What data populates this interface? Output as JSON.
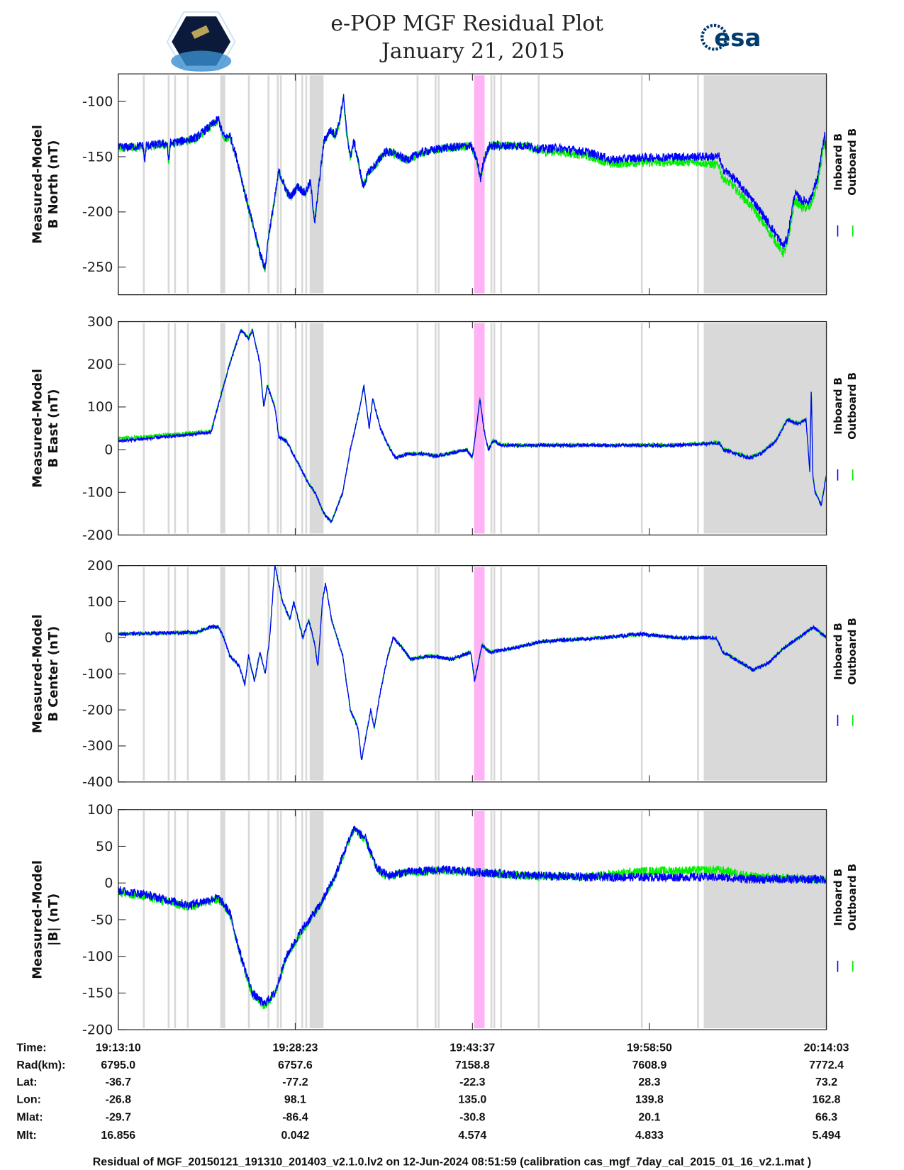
{
  "header": {
    "title_line1": "e-POP MGF Residual Plot",
    "title_line2": "January 21, 2015",
    "left_logo": "CASSIOPE",
    "right_logo": "esa"
  },
  "colors": {
    "inboard": "#0000ff",
    "outboard": "#00ee00",
    "shade": "#d9d9d9",
    "pink": "#ffb3f5"
  },
  "chart_data": [
    {
      "type": "line",
      "name": "B North",
      "ylabel": [
        "Measured-Model",
        "B North (nT)"
      ],
      "ylim": [
        -275,
        -75
      ],
      "yticks": [
        -100,
        -150,
        -200,
        -250
      ],
      "noise": 4,
      "legend": [
        "Inboard B",
        "Outboard B"
      ],
      "legend_placement": "right",
      "inboard": [
        [
          0,
          -142
        ],
        [
          128,
          -140
        ],
        [
          136,
          -155
        ],
        [
          144,
          -140
        ],
        [
          253,
          -138
        ],
        [
          260,
          -157
        ],
        [
          268,
          -138
        ],
        [
          400,
          -133
        ],
        [
          517,
          -116
        ],
        [
          540,
          -130
        ],
        [
          556,
          -133
        ],
        [
          575,
          -130
        ],
        [
          614,
          -153
        ],
        [
          653,
          -183
        ],
        [
          692,
          -210
        ],
        [
          731,
          -237
        ],
        [
          758,
          -251
        ],
        [
          773,
          -224
        ],
        [
          808,
          -187
        ],
        [
          828,
          -163
        ],
        [
          859,
          -177
        ],
        [
          886,
          -187
        ],
        [
          925,
          -177
        ],
        [
          964,
          -183
        ],
        [
          991,
          -173
        ],
        [
          1014,
          -210
        ],
        [
          1030,
          -183
        ],
        [
          1061,
          -136
        ],
        [
          1092,
          -126
        ],
        [
          1119,
          -130
        ],
        [
          1139,
          -120
        ],
        [
          1162,
          -96
        ],
        [
          1177,
          -126
        ],
        [
          1197,
          -150
        ],
        [
          1216,
          -136
        ],
        [
          1236,
          -153
        ],
        [
          1263,
          -177
        ],
        [
          1294,
          -163
        ],
        [
          1333,
          -156
        ],
        [
          1372,
          -146
        ],
        [
          1411,
          -146
        ],
        [
          1488,
          -153
        ],
        [
          1566,
          -146
        ],
        [
          1683,
          -142
        ],
        [
          1819,
          -140
        ],
        [
          1850,
          -153
        ],
        [
          1869,
          -170
        ],
        [
          1885,
          -153
        ],
        [
          1916,
          -140
        ],
        [
          1955,
          -140
        ],
        [
          2110,
          -140
        ],
        [
          2168,
          -143
        ],
        [
          2266,
          -142
        ],
        [
          2421,
          -146
        ],
        [
          2499,
          -150
        ],
        [
          2538,
          -153
        ],
        [
          2693,
          -151
        ],
        [
          2887,
          -150
        ],
        [
          3101,
          -150
        ],
        [
          3113,
          -160
        ],
        [
          3179,
          -170
        ],
        [
          3276,
          -190
        ],
        [
          3354,
          -210
        ],
        [
          3431,
          -231
        ],
        [
          3451,
          -224
        ],
        [
          3490,
          -183
        ],
        [
          3528,
          -190
        ],
        [
          3567,
          -190
        ],
        [
          3606,
          -170
        ],
        [
          3645,
          -130
        ],
        [
          3653,
          -150
        ]
      ],
      "outboard_offset": [
        [
          0,
          -1
        ],
        [
          2100,
          0
        ],
        [
          2200,
          -3
        ],
        [
          3000,
          -5
        ],
        [
          3100,
          -8
        ],
        [
          3653,
          -6
        ]
      ]
    },
    {
      "type": "line",
      "name": "B East",
      "ylabel": [
        "Measured-Model",
        "B East (nT)"
      ],
      "ylim": [
        -200,
        300
      ],
      "yticks": [
        300,
        200,
        100,
        0,
        -100,
        -200
      ],
      "noise": 4,
      "legend": [
        "Inboard B",
        "Outboard B"
      ],
      "legend_placement": "right",
      "inboard": [
        [
          0,
          20
        ],
        [
          200,
          28
        ],
        [
          478,
          40
        ],
        [
          544,
          150
        ],
        [
          575,
          200
        ],
        [
          633,
          280
        ],
        [
          672,
          260
        ],
        [
          692,
          280
        ],
        [
          731,
          200
        ],
        [
          750,
          100
        ],
        [
          769,
          150
        ],
        [
          808,
          100
        ],
        [
          828,
          30
        ],
        [
          867,
          20
        ],
        [
          925,
          -30
        ],
        [
          983,
          -80
        ],
        [
          1014,
          -100
        ],
        [
          1061,
          -150
        ],
        [
          1100,
          -170
        ],
        [
          1158,
          -100
        ],
        [
          1197,
          0
        ],
        [
          1247,
          100
        ],
        [
          1267,
          150
        ],
        [
          1294,
          50
        ],
        [
          1313,
          120
        ],
        [
          1352,
          50
        ],
        [
          1391,
          10
        ],
        [
          1430,
          -20
        ],
        [
          1488,
          -10
        ],
        [
          1566,
          -10
        ],
        [
          1644,
          -15
        ],
        [
          1799,
          0
        ],
        [
          1826,
          -20
        ],
        [
          1850,
          60
        ],
        [
          1865,
          120
        ],
        [
          1885,
          50
        ],
        [
          1908,
          0
        ],
        [
          1935,
          20
        ],
        [
          1974,
          10
        ],
        [
          2110,
          10
        ],
        [
          2887,
          10
        ],
        [
          3101,
          15
        ],
        [
          3120,
          0
        ],
        [
          3159,
          -5
        ],
        [
          3256,
          -20
        ],
        [
          3315,
          -10
        ],
        [
          3392,
          20
        ],
        [
          3451,
          70
        ],
        [
          3509,
          60
        ],
        [
          3548,
          70
        ],
        [
          3567,
          -50
        ],
        [
          3575,
          145
        ],
        [
          3583,
          -60
        ],
        [
          3594,
          -100
        ],
        [
          3626,
          -130
        ],
        [
          3653,
          -60
        ]
      ],
      "outboard_offset": [
        [
          0,
          6
        ],
        [
          500,
          3
        ],
        [
          1000,
          0
        ],
        [
          3100,
          2
        ],
        [
          3653,
          2
        ]
      ]
    },
    {
      "type": "line",
      "name": "B Center",
      "ylabel": [
        "Measured-Model",
        "B Center (nT)"
      ],
      "ylim": [
        -400,
        200
      ],
      "yticks": [
        200,
        100,
        0,
        -100,
        -200,
        -300,
        -400
      ],
      "noise": 5,
      "legend": [
        "Inboard B",
        "Outboard B"
      ],
      "legend_placement": "right",
      "inboard": [
        [
          0,
          10
        ],
        [
          400,
          15
        ],
        [
          478,
          30
        ],
        [
          517,
          30
        ],
        [
          544,
          0
        ],
        [
          575,
          -50
        ],
        [
          626,
          -80
        ],
        [
          653,
          -130
        ],
        [
          672,
          -50
        ],
        [
          703,
          -120
        ],
        [
          731,
          -40
        ],
        [
          758,
          -100
        ],
        [
          781,
          0
        ],
        [
          808,
          200
        ],
        [
          847,
          100
        ],
        [
          886,
          50
        ],
        [
          905,
          100
        ],
        [
          952,
          0
        ],
        [
          983,
          50
        ],
        [
          1014,
          -20
        ],
        [
          1030,
          -80
        ],
        [
          1053,
          100
        ],
        [
          1069,
          150
        ],
        [
          1100,
          50
        ],
        [
          1158,
          -50
        ],
        [
          1197,
          -200
        ],
        [
          1236,
          -250
        ],
        [
          1255,
          -340
        ],
        [
          1275,
          -280
        ],
        [
          1302,
          -200
        ],
        [
          1321,
          -250
        ],
        [
          1352,
          -150
        ],
        [
          1391,
          -50
        ],
        [
          1418,
          0
        ],
        [
          1469,
          -30
        ],
        [
          1508,
          -60
        ],
        [
          1605,
          -50
        ],
        [
          1721,
          -60
        ],
        [
          1819,
          -40
        ],
        [
          1838,
          -120
        ],
        [
          1877,
          -20
        ],
        [
          1916,
          -40
        ],
        [
          2032,
          -30
        ],
        [
          2188,
          -10
        ],
        [
          2499,
          0
        ],
        [
          2693,
          10
        ],
        [
          2887,
          0
        ],
        [
          3082,
          0
        ],
        [
          3120,
          -40
        ],
        [
          3218,
          -70
        ],
        [
          3276,
          -90
        ],
        [
          3354,
          -70
        ],
        [
          3431,
          -30
        ],
        [
          3509,
          0
        ],
        [
          3587,
          30
        ],
        [
          3653,
          0
        ]
      ],
      "outboard_offset": [
        [
          0,
          0
        ],
        [
          3653,
          0
        ]
      ]
    },
    {
      "type": "line",
      "name": "|B|",
      "ylabel": [
        "Measured-Model",
        "|B| (nT)"
      ],
      "ylim": [
        -200,
        100
      ],
      "yticks": [
        100,
        50,
        0,
        -50,
        -100,
        -150,
        -200
      ],
      "noise": 6,
      "legend": [
        "Inboard B",
        "Outboard B"
      ],
      "legend_placement": "right",
      "inboard": [
        [
          0,
          -10
        ],
        [
          128,
          -15
        ],
        [
          361,
          -30
        ],
        [
          517,
          -20
        ],
        [
          575,
          -40
        ],
        [
          633,
          -100
        ],
        [
          692,
          -150
        ],
        [
          750,
          -165
        ],
        [
          808,
          -150
        ],
        [
          867,
          -100
        ],
        [
          944,
          -65
        ],
        [
          1041,
          -30
        ],
        [
          1119,
          10
        ],
        [
          1177,
          50
        ],
        [
          1216,
          75
        ],
        [
          1275,
          60
        ],
        [
          1333,
          20
        ],
        [
          1391,
          10
        ],
        [
          1488,
          15
        ],
        [
          1683,
          18
        ],
        [
          1838,
          15
        ],
        [
          2110,
          10
        ],
        [
          2499,
          8
        ],
        [
          3082,
          8
        ],
        [
          3276,
          5
        ],
        [
          3653,
          5
        ]
      ],
      "outboard_offset": [
        [
          0,
          -3
        ],
        [
          2400,
          0
        ],
        [
          2700,
          8
        ],
        [
          3100,
          10
        ],
        [
          3300,
          3
        ],
        [
          3653,
          0
        ]
      ]
    }
  ],
  "x_axis": {
    "range_seconds": [
      0,
      3653
    ],
    "tick_seconds": [
      0,
      913,
      1827,
      2740,
      3653
    ]
  },
  "shading": {
    "gray": [
      [
        127,
        135
      ],
      [
        255,
        263
      ],
      [
        288,
        296
      ],
      [
        354,
        362
      ],
      [
        526,
        552
      ],
      [
        669,
        677
      ],
      [
        770,
        778
      ],
      [
        818,
        826
      ],
      [
        834,
        842
      ],
      [
        911,
        919
      ],
      [
        944,
        952
      ],
      [
        965,
        973
      ],
      [
        987,
        1059
      ],
      [
        1539,
        1547
      ],
      [
        1632,
        1640
      ],
      [
        1648,
        1656
      ],
      [
        1920,
        1928
      ],
      [
        1935,
        1943
      ],
      [
        1970,
        1978
      ],
      [
        2164,
        2172
      ],
      [
        2696,
        2704
      ],
      [
        2986,
        2994
      ],
      [
        3020,
        3653
      ]
    ],
    "pink": [
      [
        1835,
        1890
      ]
    ]
  },
  "table": {
    "row_labels": [
      "Time:",
      "Rad(km):",
      "Lat:",
      "Lon:",
      "Mlat:",
      "Mlt:"
    ],
    "columns": [
      [
        "19:13:10",
        "6795.0",
        "-36.7",
        "-26.8",
        "-29.7",
        "16.856"
      ],
      [
        "19:28:23",
        "6757.6",
        "-77.2",
        "98.1",
        "-86.4",
        "0.042"
      ],
      [
        "19:43:37",
        "7158.8",
        "-22.3",
        "135.0",
        "-30.8",
        "4.574"
      ],
      [
        "19:58:50",
        "7608.9",
        "28.3",
        "139.8",
        "20.1",
        "4.833"
      ],
      [
        "20:14:03",
        "7772.4",
        "73.2",
        "162.8",
        "66.3",
        "5.494"
      ]
    ]
  },
  "footer": "Residual of MGF_20150121_191310_201403_v2.1.0.lv2 on 12-Jun-2024 08:51:59 (calibration cas_mgf_7day_cal_2015_01_16_v2.1.mat )"
}
